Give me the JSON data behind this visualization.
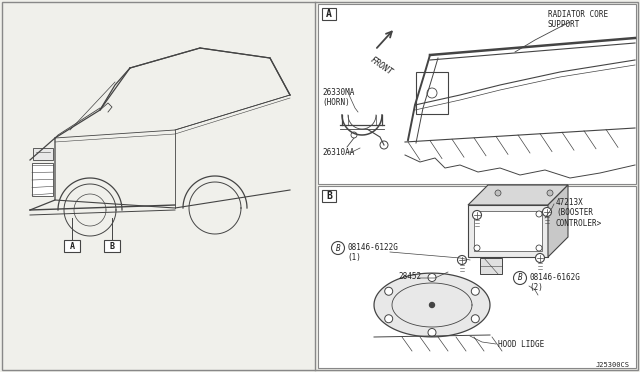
{
  "bg_color": "#f0f0eb",
  "border_color": "#888888",
  "line_color": "#444444",
  "text_color": "#222222",
  "diagram_code": "J25300CS",
  "panel_A_label": "A",
  "panel_B_label": "B",
  "parts": {
    "horn": "26330MA\n(HORN)",
    "horn_bracket": "26310AA",
    "radiator_support": "RADIATOR CORE\nSUPPORT",
    "front_label": "FRONT",
    "booster": "47213X\n(BOOSTER\nCONTROLER>",
    "bolt1": "08146-6122G\n(1)",
    "bolt2": "08146-6162G\n(2)",
    "part28452": "28452",
    "hoodlidge": "HOOD LIDGE"
  },
  "car_labels": {
    "A_box": "A",
    "B_box": "B"
  }
}
